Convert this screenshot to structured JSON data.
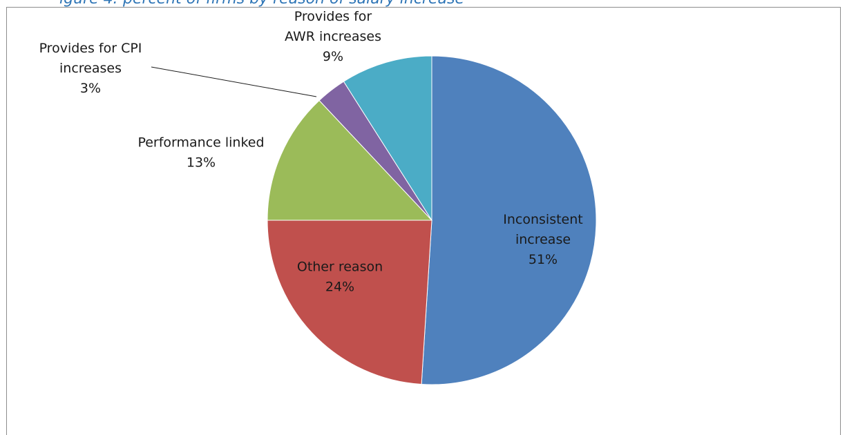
{
  "caption": {
    "text": "igure 4: percent of firms by reason of salary increase",
    "color": "#2e75b6"
  },
  "chart_data": {
    "type": "pie",
    "title": "",
    "start_angle_deg": 0,
    "direction": "clockwise",
    "legend": "none",
    "slices": [
      {
        "label": "Inconsistent increase",
        "lines": [
          "Inconsistent",
          "increase"
        ],
        "value": 51,
        "pct_text": "51%",
        "color": "#4f81bd"
      },
      {
        "label": "Other reason",
        "lines": [
          "Other reason"
        ],
        "value": 24,
        "pct_text": "24%",
        "color": "#c0504d"
      },
      {
        "label": "Performance linked",
        "lines": [
          "Performance linked"
        ],
        "value": 13,
        "pct_text": "13%",
        "color": "#9bbb59"
      },
      {
        "label": "Provides for CPI increases",
        "lines": [
          "Provides for CPI",
          "increases"
        ],
        "value": 3,
        "pct_text": "3%",
        "color": "#8064a2"
      },
      {
        "label": "Provides for AWR increases",
        "lines": [
          "Provides for",
          "AWR increases"
        ],
        "value": 9,
        "pct_text": "9%",
        "color": "#4bacc6"
      }
    ]
  }
}
